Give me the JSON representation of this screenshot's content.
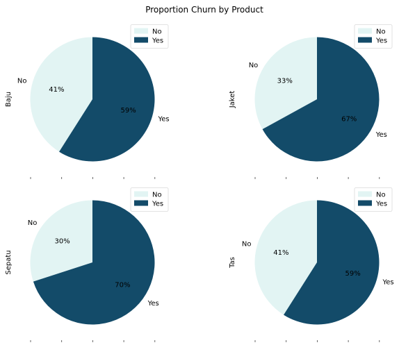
{
  "figure": {
    "title": "Proportion Churn by Product"
  },
  "colors": {
    "No": "#e2f4f3",
    "Yes": "#134b69"
  },
  "chart_data": [
    {
      "type": "pie",
      "ylabel": "Baju",
      "labels": [
        "No",
        "Yes"
      ],
      "values": [
        41,
        59
      ],
      "pct_labels": [
        "41%",
        "59%"
      ],
      "legend": [
        "No",
        "Yes"
      ],
      "legend_position": "top-right"
    },
    {
      "type": "pie",
      "ylabel": "Jaket",
      "labels": [
        "No",
        "Yes"
      ],
      "values": [
        33,
        67
      ],
      "pct_labels": [
        "33%",
        "67%"
      ],
      "legend": [
        "No",
        "Yes"
      ],
      "legend_position": "top-right"
    },
    {
      "type": "pie",
      "ylabel": "Sepatu",
      "labels": [
        "No",
        "Yes"
      ],
      "values": [
        30,
        70
      ],
      "pct_labels": [
        "30%",
        "70%"
      ],
      "legend": [
        "No",
        "Yes"
      ],
      "legend_position": "top-right"
    },
    {
      "type": "pie",
      "ylabel": "Tas",
      "labels": [
        "No",
        "Yes"
      ],
      "values": [
        41,
        59
      ],
      "pct_labels": [
        "41%",
        "59%"
      ],
      "legend": [
        "No",
        "Yes"
      ],
      "legend_position": "top-right"
    }
  ]
}
